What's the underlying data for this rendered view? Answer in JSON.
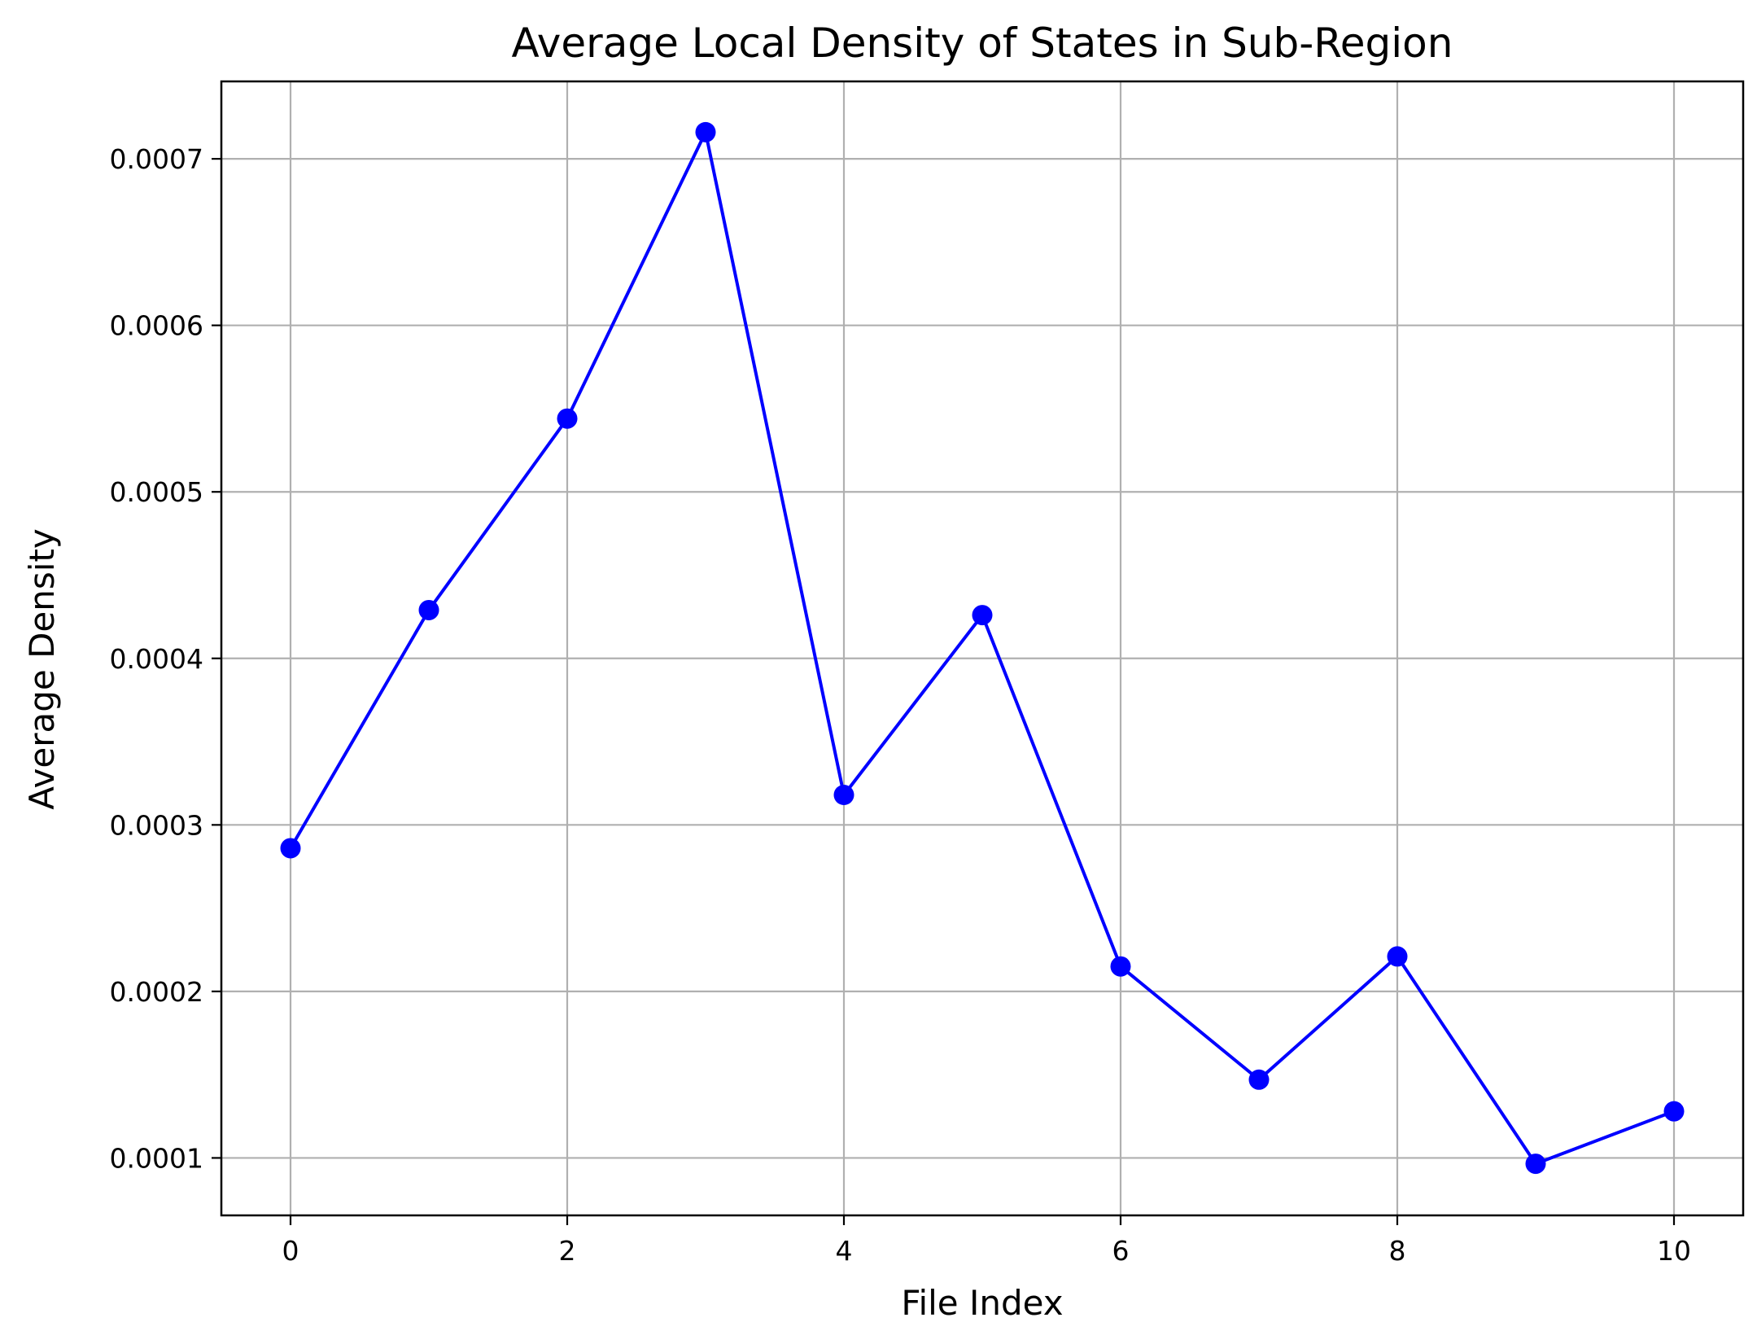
{
  "chart_data": {
    "type": "line",
    "title": "Average Local Density of States in Sub-Region",
    "xlabel": "File Index",
    "ylabel": "Average Density",
    "x": [
      0,
      1,
      2,
      3,
      4,
      5,
      6,
      7,
      8,
      9,
      10
    ],
    "series": [
      {
        "values": [
          0.000286,
          0.000429,
          0.000544,
          0.000716,
          0.000318,
          0.000426,
          0.000215,
          0.000147,
          0.000221,
          9.65e-05,
          0.000128
        ],
        "color": "#0000ff",
        "marker": "circle"
      }
    ],
    "xlim": [
      -0.5,
      10.5
    ],
    "ylim": [
      6.55e-05,
      0.0007465
    ],
    "xticks": [
      0,
      2,
      4,
      6,
      8,
      10
    ],
    "xtick_labels": [
      "0",
      "2",
      "4",
      "6",
      "8",
      "10"
    ],
    "yticks": [
      0.0001,
      0.0002,
      0.0003,
      0.0004,
      0.0005,
      0.0006,
      0.0007
    ],
    "ytick_labels": [
      "0.0001",
      "0.0002",
      "0.0003",
      "0.0004",
      "0.0005",
      "0.0006",
      "0.0007"
    ],
    "grid": true,
    "legend": "none"
  }
}
